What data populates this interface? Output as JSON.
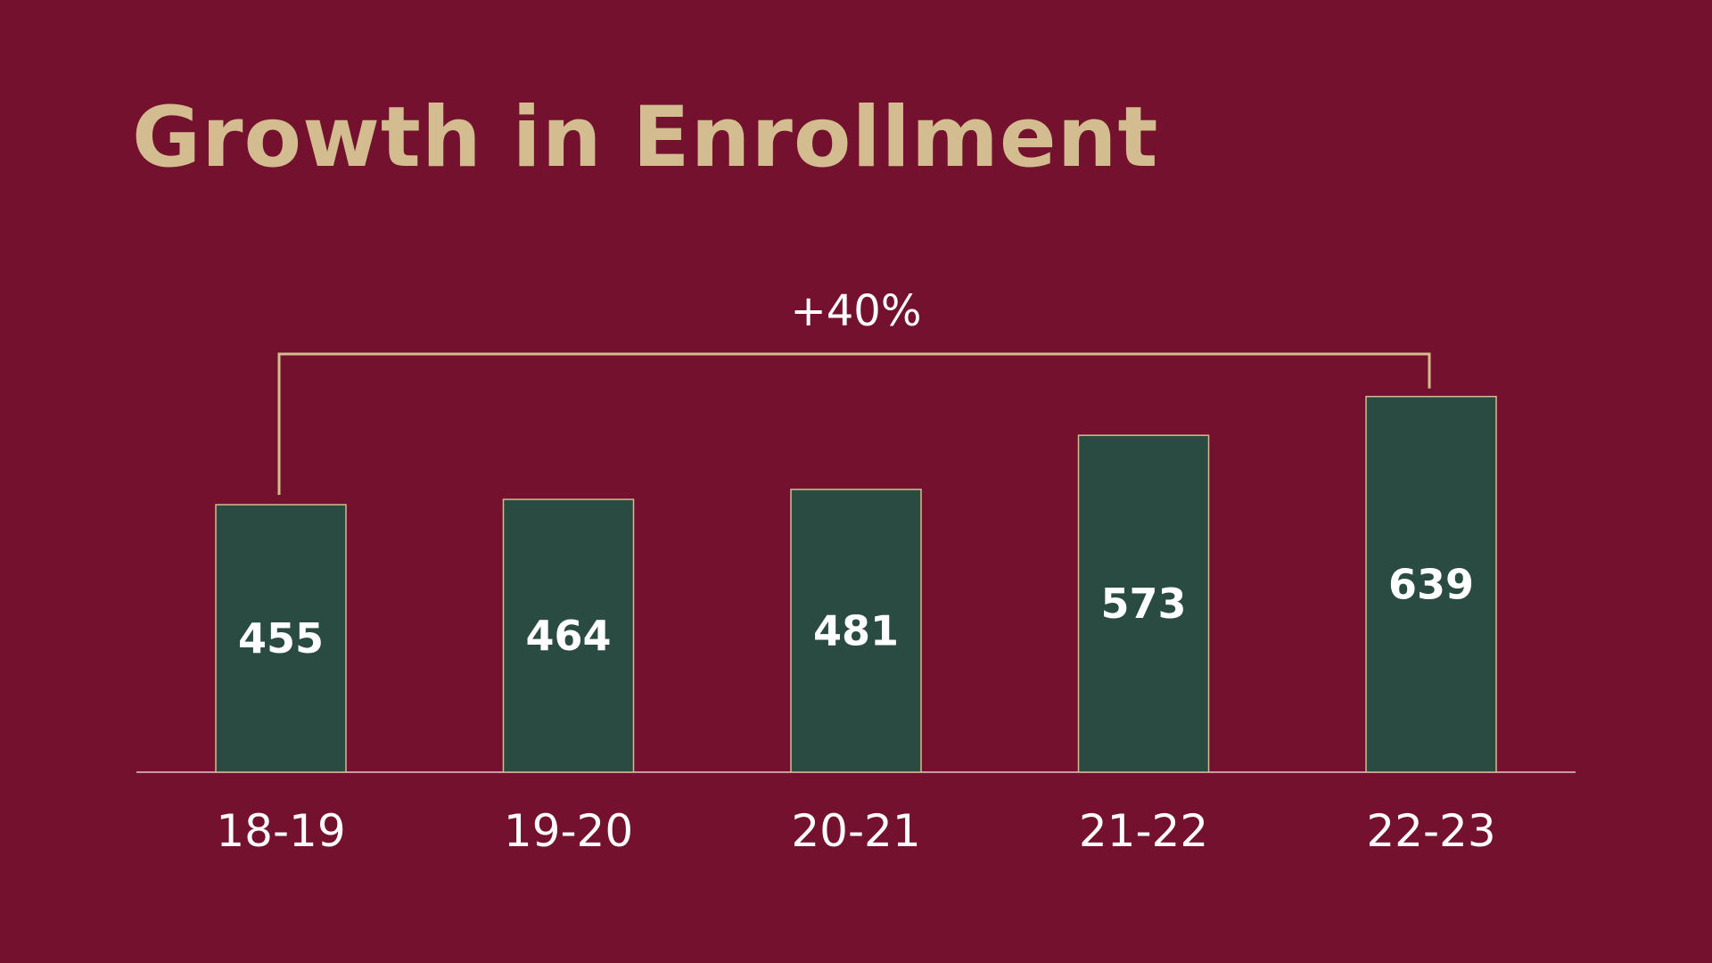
{
  "title": "Growth in Enrollment",
  "colors": {
    "background": "#73112e",
    "title": "#d3bc8f",
    "bar_fill": "#294b41",
    "bar_outline": "#d3bc8f",
    "bracket": "#d3bc8f",
    "label": "#ffffff",
    "baseline": "#e6c9cf"
  },
  "chart_data": {
    "type": "bar",
    "title": "Growth in Enrollment",
    "categories": [
      "18-19",
      "19-20",
      "20-21",
      "21-22",
      "22-23"
    ],
    "values": [
      455,
      464,
      481,
      573,
      639
    ],
    "data_labels": [
      "455",
      "464",
      "481",
      "573",
      "639"
    ],
    "xlabel": "",
    "ylabel": "",
    "ylim": [
      0,
      700
    ],
    "grid": false,
    "legend": "none",
    "annotation": {
      "text": "+40%",
      "from_category": "18-19",
      "to_category": "22-23"
    }
  }
}
